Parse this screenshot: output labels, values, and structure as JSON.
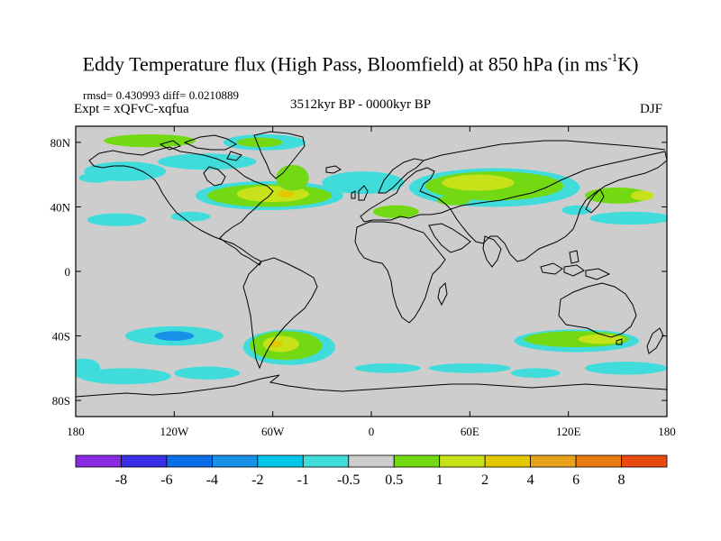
{
  "title": {
    "main": "Eddy Temperature flux (High Pass, Bloomfield) at 850 hPa (in ms",
    "sup": "-1",
    "unit_end": "K)"
  },
  "stats": "rmsd= 0.430993 diff= 0.0210889",
  "expt": "Expt = xQFvC-xqfua",
  "period": "3512kyr BP - 0000kyr BP",
  "season": "DJF",
  "map": {
    "lat_ticks": [
      "80N",
      "40N",
      "0",
      "40S",
      "80S"
    ],
    "lat_values": [
      80,
      40,
      0,
      -40,
      -80
    ],
    "lon_ticks": [
      "180",
      "120W",
      "60W",
      "0",
      "60E",
      "120E",
      "180"
    ],
    "lon_values": [
      -180,
      -120,
      -60,
      0,
      60,
      120,
      180
    ],
    "lat_range": [
      -90,
      90
    ],
    "lon_range": [
      -180,
      180
    ],
    "background_color": "#cdcdcd",
    "regions": [
      {
        "name": "arctic-canada",
        "lon": -135,
        "lat": 81,
        "rx": 28,
        "ry": 4,
        "level": "0.5-1"
      },
      {
        "name": "greenland-north",
        "lon": -65,
        "lat": 80,
        "rx": 25,
        "ry": 5,
        "level": "-0.5"
      },
      {
        "name": "greenland-north-core",
        "lon": -68,
        "lat": 80,
        "rx": 14,
        "ry": 3,
        "level": "0.5-1"
      },
      {
        "name": "canada-west",
        "lon": -150,
        "lat": 62,
        "rx": 25,
        "ry": 6,
        "level": "-0.5"
      },
      {
        "name": "canada-arctic",
        "lon": -100,
        "lat": 68,
        "rx": 30,
        "ry": 5,
        "level": "-0.5"
      },
      {
        "name": "north-atlantic-band",
        "lon": -62,
        "lat": 47,
        "rx": 45,
        "ry": 9,
        "level": "-0.5"
      },
      {
        "name": "north-atlantic-green",
        "lon": -62,
        "lat": 47,
        "rx": 38,
        "ry": 7,
        "level": "0.5-1"
      },
      {
        "name": "north-atlantic-yellow",
        "lon": -60,
        "lat": 48,
        "rx": 22,
        "ry": 5,
        "level": "1-2"
      },
      {
        "name": "north-atlantic-orange",
        "lon": -52,
        "lat": 48,
        "rx": 5,
        "ry": 2,
        "level": "2-4"
      },
      {
        "name": "labrador-green",
        "lon": -48,
        "lat": 58,
        "rx": 10,
        "ry": 8,
        "level": "0.5-1"
      },
      {
        "name": "eastern-atlantic",
        "lon": -5,
        "lat": 55,
        "rx": 25,
        "ry": 7,
        "level": "-0.5"
      },
      {
        "name": "us-band",
        "lon": -110,
        "lat": 34,
        "rx": 12,
        "ry": 3,
        "level": "-0.5"
      },
      {
        "name": "pacific-north-band",
        "lon": -155,
        "lat": 32,
        "rx": 18,
        "ry": 4,
        "level": "-0.5"
      },
      {
        "name": "siberia-cyan",
        "lon": 75,
        "lat": 52,
        "rx": 52,
        "ry": 12,
        "level": "-0.5"
      },
      {
        "name": "siberia-green",
        "lon": 75,
        "lat": 53,
        "rx": 42,
        "ry": 9,
        "level": "0.5-1"
      },
      {
        "name": "siberia-yellow",
        "lon": 65,
        "lat": 55,
        "rx": 22,
        "ry": 5,
        "level": "1-2"
      },
      {
        "name": "caspian-green",
        "lon": 50,
        "lat": 44,
        "rx": 10,
        "ry": 3,
        "level": "0.5-1"
      },
      {
        "name": "mediterranean",
        "lon": 15,
        "lat": 37,
        "rx": 14,
        "ry": 4,
        "level": "0.5-1"
      },
      {
        "name": "japan-green",
        "lon": 150,
        "lat": 47,
        "rx": 20,
        "ry": 5,
        "level": "0.5-1"
      },
      {
        "name": "japan-yellow",
        "lon": 165,
        "lat": 47,
        "rx": 7,
        "ry": 3,
        "level": "1-2"
      },
      {
        "name": "pacific-east-band",
        "lon": 158,
        "lat": 33,
        "rx": 25,
        "ry": 4,
        "level": "-0.5"
      },
      {
        "name": "china-band",
        "lon": 125,
        "lat": 38,
        "rx": 9,
        "ry": 3,
        "level": "-0.5"
      },
      {
        "name": "north-pacific-west",
        "lon": -168,
        "lat": 58,
        "rx": 10,
        "ry": 3,
        "level": "-0.5"
      },
      {
        "name": "south-atlantic-cyan",
        "lon": -50,
        "lat": -47,
        "rx": 28,
        "ry": 11,
        "level": "-0.5"
      },
      {
        "name": "south-atlantic-green",
        "lon": -52,
        "lat": -46,
        "rx": 22,
        "ry": 9,
        "level": "0.5-1"
      },
      {
        "name": "south-atlantic-yellow",
        "lon": -55,
        "lat": -45,
        "rx": 11,
        "ry": 5,
        "level": "1-2"
      },
      {
        "name": "south-atlantic-orange",
        "lon": -58,
        "lat": -45,
        "rx": 4,
        "ry": 2,
        "level": "2-4"
      },
      {
        "name": "south-pacific-cyan",
        "lon": -120,
        "lat": -40,
        "rx": 30,
        "ry": 6,
        "level": "-0.5"
      },
      {
        "name": "south-pacific-blue",
        "lon": -120,
        "lat": -40,
        "rx": 12,
        "ry": 3,
        "level": "-2"
      },
      {
        "name": "south-pacific-south",
        "lon": -150,
        "lat": -65,
        "rx": 28,
        "ry": 5,
        "level": "-0.5"
      },
      {
        "name": "south-pacific-south-2",
        "lon": -100,
        "lat": -63,
        "rx": 20,
        "ry": 4,
        "level": "-0.5"
      },
      {
        "name": "southern-ocean-west",
        "lon": -175,
        "lat": -60,
        "rx": 10,
        "ry": 6,
        "level": "-0.5"
      },
      {
        "name": "south-atlantic-band",
        "lon": 10,
        "lat": -60,
        "rx": 20,
        "ry": 3,
        "level": "-0.5"
      },
      {
        "name": "indian-ocean-band",
        "lon": 60,
        "lat": -60,
        "rx": 25,
        "ry": 3,
        "level": "-0.5"
      },
      {
        "name": "australia-south-cyan",
        "lon": 125,
        "lat": -43,
        "rx": 38,
        "ry": 7,
        "level": "-0.5"
      },
      {
        "name": "australia-south-green",
        "lon": 125,
        "lat": -42,
        "rx": 32,
        "ry": 5,
        "level": "0.5-1"
      },
      {
        "name": "australia-south-yellow",
        "lon": 140,
        "lat": -42,
        "rx": 14,
        "ry": 3,
        "level": "1-2"
      },
      {
        "name": "southern-ocean-east",
        "lon": 155,
        "lat": -60,
        "rx": 25,
        "ry": 4,
        "level": "-0.5"
      },
      {
        "name": "southern-ocean-east-2",
        "lon": 100,
        "lat": -63,
        "rx": 15,
        "ry": 3,
        "level": "-0.5"
      }
    ]
  },
  "colorbar": {
    "colors": [
      "#8a2be2",
      "#3a2ee6",
      "#0a6ee6",
      "#1890e8",
      "#00c8e8",
      "#40dcdc",
      "#cdcdcd",
      "#73d912",
      "#c8e21a",
      "#e3c800",
      "#e8a21a",
      "#e87a10",
      "#e84a10"
    ],
    "labels": [
      "-8",
      "-6",
      "-4",
      "-2",
      "-1",
      "-0.5",
      "0.5",
      "1",
      "2",
      "4",
      "6",
      "8"
    ],
    "level_colors": {
      "-2": "#1890e8",
      "-0.5": "#40dcdc",
      "0.5-1": "#73d912",
      "1-2": "#c8e21a",
      "2-4": "#e3c800"
    }
  }
}
